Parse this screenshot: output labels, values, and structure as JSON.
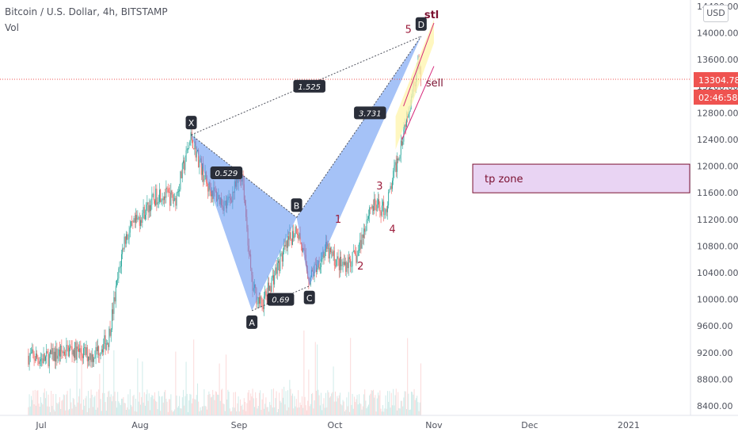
{
  "header": {
    "symbol_line": "Bitcoin / U.S. Dollar, 4h, BITSTAMP",
    "indicator": "Vol",
    "currency_button": "USD"
  },
  "chart_data": {
    "type": "candlestick",
    "x_ticks": [
      "Jul",
      "Aug",
      "Sep",
      "Oct",
      "Nov",
      "Dec",
      "2021"
    ],
    "y_ticks": [
      8400,
      8800,
      9200,
      9600,
      10000,
      10400,
      10800,
      11200,
      11600,
      12000,
      12400,
      12800,
      13200,
      13600,
      14000,
      14400
    ],
    "y_tick_labels": [
      "8400.00",
      "8800.00",
      "9200.00",
      "9600.00",
      "10000.00",
      "10400.00",
      "10800.00",
      "11200.00",
      "11600.00",
      "12000.00",
      "12400.00",
      "12800.00",
      "13200.00",
      "13600.00",
      "14000.00",
      "14400.00"
    ],
    "ylim": [
      8300,
      14450
    ],
    "current_price": "13304.78",
    "current_price_value": 13304.78,
    "countdown": "02:46:58",
    "price_path": [
      {
        "date": "2020-06-27",
        "price": 9150
      },
      {
        "date": "2020-07-02",
        "price": 9100
      },
      {
        "date": "2020-07-10",
        "price": 9250
      },
      {
        "date": "2020-07-17",
        "price": 9150
      },
      {
        "date": "2020-07-22",
        "price": 9400
      },
      {
        "date": "2020-07-27",
        "price": 10900
      },
      {
        "date": "2020-08-02",
        "price": 11300
      },
      {
        "date": "2020-08-07",
        "price": 11600
      },
      {
        "date": "2020-08-12",
        "price": 11500
      },
      {
        "date": "2020-08-17",
        "price": 12450
      },
      {
        "date": "2020-08-22",
        "price": 11700
      },
      {
        "date": "2020-08-28",
        "price": 11400
      },
      {
        "date": "2020-09-02",
        "price": 11900
      },
      {
        "date": "2020-09-05",
        "price": 10200
      },
      {
        "date": "2020-09-08",
        "price": 9900
      },
      {
        "date": "2020-09-14",
        "price": 10600
      },
      {
        "date": "2020-09-19",
        "price": 11100
      },
      {
        "date": "2020-09-23",
        "price": 10300
      },
      {
        "date": "2020-09-28",
        "price": 10750
      },
      {
        "date": "2020-10-03",
        "price": 10500
      },
      {
        "date": "2020-10-08",
        "price": 10650
      },
      {
        "date": "2020-10-12",
        "price": 11400
      },
      {
        "date": "2020-10-17",
        "price": 11350
      },
      {
        "date": "2020-10-21",
        "price": 12200
      },
      {
        "date": "2020-10-24",
        "price": 12900
      },
      {
        "date": "2020-10-27",
        "price": 13500
      },
      {
        "date": "2020-10-28",
        "price": 13300
      }
    ],
    "pattern_points": [
      {
        "label": "X",
        "date": "2020-08-17",
        "price": 12470,
        "label_pos": "above"
      },
      {
        "label": "A",
        "date": "2020-09-05",
        "price": 9830,
        "label_pos": "below"
      },
      {
        "label": "B",
        "date": "2020-09-19",
        "price": 11230,
        "label_pos": "above"
      },
      {
        "label": "C",
        "date": "2020-09-23",
        "price": 10200,
        "label_pos": "below"
      },
      {
        "label": "D",
        "date": "2020-10-28",
        "price": 13950,
        "label_pos": "above"
      }
    ],
    "ratios": [
      {
        "text": "0.529",
        "date": "2020-08-28",
        "price": 11900
      },
      {
        "text": "1.525",
        "date": "2020-09-23",
        "price": 13200
      },
      {
        "text": "0.69",
        "date": "2020-09-14",
        "price": 10000
      },
      {
        "text": "3.731",
        "date": "2020-10-12",
        "price": 12800
      }
    ],
    "wave_labels": [
      {
        "text": "1",
        "date": "2020-10-02",
        "price": 11150
      },
      {
        "text": "2",
        "date": "2020-10-09",
        "price": 10450
      },
      {
        "text": "3",
        "date": "2020-10-15",
        "price": 11650
      },
      {
        "text": "4",
        "date": "2020-10-19",
        "price": 11000
      },
      {
        "text": "5",
        "date": "2020-10-24",
        "price": 14000
      }
    ],
    "annotations": {
      "stl": "stl",
      "sell": "sell",
      "tp_zone": "tp zone"
    },
    "tp_zone_range": [
      11600,
      12030
    ],
    "colors": {
      "up": "#26a69a",
      "down": "#ef5350",
      "pattern_fill": "#5b8ff0",
      "price_badge": "#ef5350",
      "tp_zone_fill": "#e9d4f3",
      "tp_zone_border": "#7b1030",
      "channel_fill": "#fff5b0",
      "channel_line": "#d6287a"
    }
  }
}
